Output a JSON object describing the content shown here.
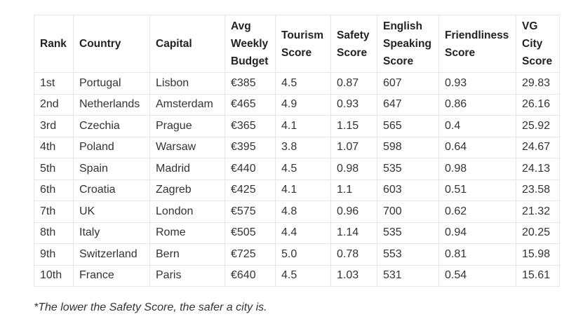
{
  "table": {
    "headers": [
      "Rank",
      "Country",
      "Capital",
      "Avg Weekly Budget",
      "Tourism Score",
      "Safety Score",
      "English Speaking Score",
      "Friendliness Score",
      "VG City Score"
    ],
    "rows": [
      [
        "1st",
        "Portugal",
        "Lisbon",
        "€385",
        "4.5",
        "0.87",
        "607",
        "0.93",
        "29.83"
      ],
      [
        "2nd",
        "Netherlands",
        "Amsterdam",
        "€465",
        "4.9",
        "0.93",
        "647",
        "0.86",
        "26.16"
      ],
      [
        "3rd",
        "Czechia",
        "Prague",
        "€365",
        "4.1",
        "1.15",
        "565",
        "0.4",
        "25.92"
      ],
      [
        "4th",
        "Poland",
        "Warsaw",
        "€395",
        "3.8",
        "1.07",
        "598",
        "0.64",
        "24.67"
      ],
      [
        "5th",
        "Spain",
        "Madrid",
        "€440",
        "4.5",
        "0.98",
        "535",
        "0.98",
        "24.13"
      ],
      [
        "6th",
        "Croatia",
        "Zagreb",
        "€425",
        "4.1",
        "1.1",
        "603",
        "0.51",
        "23.58"
      ],
      [
        "7th",
        "UK",
        "London",
        "€575",
        "4.8",
        "0.96",
        "700",
        "0.62",
        "21.32"
      ],
      [
        "8th",
        "Italy",
        "Rome",
        "€505",
        "4.4",
        "1.14",
        "535",
        "0.94",
        "20.25"
      ],
      [
        "9th",
        "Switzerland",
        "Bern",
        "€725",
        "5.0",
        "0.78",
        "553",
        "0.81",
        "15.98"
      ],
      [
        "10th",
        "France",
        "Paris",
        "€640",
        "4.5",
        "1.03",
        "531",
        "0.54",
        "15.61"
      ]
    ]
  },
  "footnote": "*The lower the Safety Score, the safer a city is."
}
